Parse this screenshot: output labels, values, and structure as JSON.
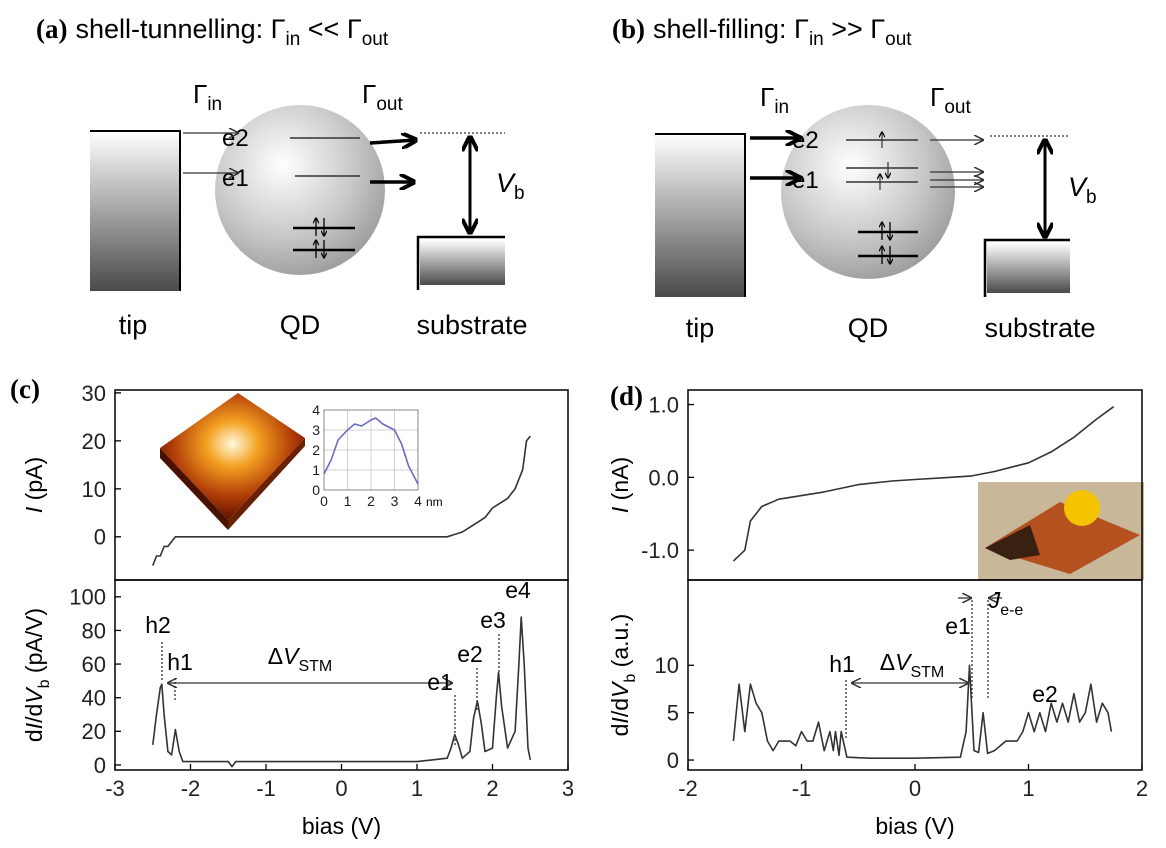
{
  "panels": {
    "a": {
      "label": "(a)",
      "title": [
        "shell-tunnelling: Γ",
        "in",
        " << Γ",
        "out"
      ],
      "gamma_in": [
        "Γ",
        "in"
      ],
      "gamma_out": [
        "Γ",
        "out"
      ],
      "levels": [
        "e2",
        "e1"
      ],
      "vb": [
        "V",
        "b"
      ],
      "labels": [
        "tip",
        "QD",
        "substrate"
      ]
    },
    "b": {
      "label": "(b)",
      "title": [
        "shell-filling: Γ",
        "in",
        " >> Γ",
        "out"
      ],
      "gamma_in": [
        "Γ",
        "in"
      ],
      "gamma_out": [
        "Γ",
        "out"
      ],
      "levels": [
        "e2",
        "e1"
      ],
      "vb": [
        "V",
        "b"
      ],
      "labels": [
        "tip",
        "QD",
        "substrate"
      ]
    }
  },
  "chart_data": [
    {
      "type": "line",
      "label": "(c)",
      "y_label": [
        "I",
        " (pA)"
      ],
      "color": "#333333",
      "x": [
        -2.5,
        -2.45,
        -2.4,
        -2.35,
        -2.3,
        -2.25,
        -2.2,
        -2.15,
        -2.1,
        -2,
        -1.5,
        -1,
        -0.5,
        0,
        0.5,
        1,
        1.4,
        1.5,
        1.6,
        1.7,
        1.8,
        1.9,
        2.0,
        2.1,
        2.2,
        2.3,
        2.4,
        2.45,
        2.5
      ],
      "values": [
        -6,
        -4,
        -4,
        -2,
        -2,
        -1,
        0,
        0,
        0,
        0,
        0,
        0,
        0,
        0,
        0,
        0,
        0,
        0.5,
        1,
        2,
        3,
        4,
        6,
        7,
        8,
        10,
        14,
        20,
        21
      ],
      "xlim": [
        -3,
        3
      ],
      "ylim": [
        -9,
        30.6
      ],
      "yticks": [
        0,
        10,
        20,
        30
      ]
    },
    {
      "type": "line",
      "y_label": [
        "d",
        "I",
        "/d",
        "V",
        "b",
        " (pA/V)"
      ],
      "x_label": "bias (V)",
      "color": "#333333",
      "x": [
        -2.5,
        -2.45,
        -2.4,
        -2.38,
        -2.35,
        -2.3,
        -2.25,
        -2.2,
        -2.15,
        -2.1,
        -2,
        -1.5,
        -1.45,
        -1.4,
        -1,
        0,
        1,
        1.2,
        1.4,
        1.45,
        1.5,
        1.55,
        1.6,
        1.7,
        1.75,
        1.8,
        1.85,
        1.9,
        2.0,
        2.05,
        2.08,
        2.12,
        2.2,
        2.3,
        2.35,
        2.38,
        2.42,
        2.47,
        2.5
      ],
      "values": [
        12,
        30,
        46,
        48,
        30,
        8,
        6,
        21,
        8,
        2,
        2,
        2,
        -1,
        2,
        2,
        2,
        2,
        3,
        4,
        10,
        18,
        12,
        4,
        8,
        28,
        38,
        25,
        8,
        10,
        40,
        55,
        35,
        10,
        20,
        60,
        88,
        60,
        10,
        3
      ],
      "xlim": [
        -3,
        3
      ],
      "xticks": [
        -3,
        -2,
        -1,
        0,
        1,
        2,
        3
      ],
      "ylim": [
        -3,
        110
      ],
      "yticks": [
        0,
        20,
        40,
        60,
        80,
        100
      ],
      "annotations": [
        [
          "h2"
        ],
        [
          "h1"
        ],
        [
          "Δ",
          "V",
          "STM"
        ],
        [
          "e1"
        ],
        [
          "e2"
        ],
        [
          "e3"
        ],
        [
          "e4"
        ]
      ]
    },
    {
      "type": "line",
      "color": "#6b6bc0",
      "grid": true,
      "x": [
        0,
        0.3,
        0.6,
        1,
        1.3,
        1.6,
        2,
        2.2,
        2.5,
        3,
        3.3,
        3.6,
        4
      ],
      "values": [
        0.8,
        1.5,
        2.5,
        3,
        3.3,
        3.2,
        3.5,
        3.6,
        3.3,
        3,
        2.3,
        1.2,
        0.3
      ],
      "xlim": [
        0,
        4
      ],
      "ylim": [
        0,
        4
      ],
      "xticks": [
        0,
        1,
        2,
        3,
        4
      ],
      "yticks": [
        0,
        1,
        2,
        3,
        4
      ],
      "x_unit": "nm"
    },
    {
      "type": "line",
      "label": "(d)",
      "y_label": [
        "I",
        " (nA)"
      ],
      "color": "#333333",
      "x": [
        -1.6,
        -1.5,
        -1.45,
        -1.35,
        -1.2,
        -1,
        -0.8,
        -0.5,
        -0.2,
        0,
        0.3,
        0.5,
        0.7,
        1,
        1.2,
        1.4,
        1.6,
        1.75
      ],
      "values": [
        -1.15,
        -1.0,
        -0.6,
        -0.4,
        -0.3,
        -0.25,
        -0.2,
        -0.1,
        -0.05,
        -0.03,
        0,
        0.02,
        0.08,
        0.2,
        0.35,
        0.55,
        0.8,
        0.97
      ],
      "xlim": [
        -2,
        2
      ],
      "ylim": [
        -1.41,
        1.2
      ],
      "yticks": [
        {
          "value": -1,
          "label": "-1.0"
        },
        {
          "value": 0,
          "label": "0.0"
        },
        {
          "value": 1,
          "label": "1.0"
        }
      ]
    },
    {
      "type": "line",
      "y_label": [
        "d",
        "I",
        "/d",
        "V",
        "b",
        " (a.u.)"
      ],
      "x_label": "bias (V)",
      "color": "#333333",
      "x": [
        -1.6,
        -1.55,
        -1.5,
        -1.45,
        -1.4,
        -1.35,
        -1.3,
        -1.25,
        -1.2,
        -1.1,
        -1.05,
        -1,
        -0.95,
        -0.9,
        -0.85,
        -0.8,
        -0.75,
        -0.72,
        -0.7,
        -0.67,
        -0.65,
        -0.6,
        -0.4,
        0,
        0.4,
        0.45,
        0.48,
        0.52,
        0.56,
        0.6,
        0.64,
        0.7,
        0.8,
        0.9,
        0.95,
        1,
        1.05,
        1.1,
        1.15,
        1.2,
        1.25,
        1.3,
        1.35,
        1.4,
        1.45,
        1.5,
        1.55,
        1.6,
        1.65,
        1.7,
        1.73
      ],
      "values": [
        2,
        8,
        3,
        8,
        6,
        5,
        2,
        1,
        2,
        2,
        1.5,
        3,
        2,
        2,
        4,
        1,
        3,
        1,
        3,
        0.5,
        3,
        0.3,
        0.2,
        0.2,
        0.3,
        3,
        10,
        1,
        0.8,
        5,
        0.7,
        1,
        2,
        2,
        3,
        5,
        3,
        5,
        3,
        6,
        4,
        6,
        4,
        7,
        4,
        5,
        8,
        4,
        6,
        5,
        3
      ],
      "xlim": [
        -2,
        2
      ],
      "xticks": [
        -2,
        -1,
        0,
        1,
        2
      ],
      "ylim": [
        -1.05,
        19
      ],
      "yticks": [
        0,
        5,
        10
      ],
      "annotations": [
        [
          "e1"
        ],
        [
          "h1"
        ],
        [
          "Δ",
          "V",
          "STM"
        ],
        [
          "J",
          "e-e"
        ],
        [
          "e2"
        ]
      ]
    }
  ]
}
